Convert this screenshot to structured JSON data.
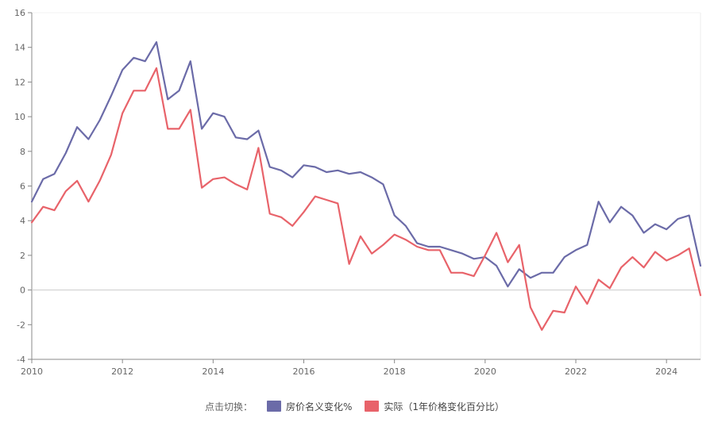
{
  "legend": {
    "title": "点击切换：",
    "items": [
      {
        "label": "房价名义变化%",
        "color": "#6b6ba8"
      },
      {
        "label": "实际（1年价格变化百分比）",
        "color": "#e8636a"
      }
    ]
  },
  "chart_data": {
    "type": "line",
    "title": "",
    "xlabel": "",
    "ylabel": "",
    "xlim": [
      2010,
      2024.75
    ],
    "ylim": [
      -4,
      16
    ],
    "x_ticks": [
      "2010",
      "2012",
      "2014",
      "2016",
      "2018",
      "2020",
      "2022",
      "2024"
    ],
    "y_ticks": [
      "-4",
      "-2",
      "0",
      "2",
      "4",
      "6",
      "8",
      "10",
      "12",
      "14",
      "16"
    ],
    "grid": false,
    "legend_position": "bottom-center",
    "x": [
      2010.0,
      2010.25,
      2010.5,
      2010.75,
      2011.0,
      2011.25,
      2011.5,
      2011.75,
      2012.0,
      2012.25,
      2012.5,
      2012.75,
      2013.0,
      2013.25,
      2013.5,
      2013.75,
      2014.0,
      2014.25,
      2014.5,
      2014.75,
      2015.0,
      2015.25,
      2015.5,
      2015.75,
      2016.0,
      2016.25,
      2016.5,
      2016.75,
      2017.0,
      2017.25,
      2017.5,
      2017.75,
      2018.0,
      2018.25,
      2018.5,
      2018.75,
      2019.0,
      2019.25,
      2019.5,
      2019.75,
      2020.0,
      2020.25,
      2020.5,
      2020.75,
      2021.0,
      2021.25,
      2021.5,
      2021.75,
      2022.0,
      2022.25,
      2022.5,
      2022.75,
      2023.0,
      2023.25,
      2023.5,
      2023.75,
      2024.0,
      2024.25,
      2024.5,
      2024.75
    ],
    "series": [
      {
        "name": "房价名义变化%",
        "color": "#6b6ba8",
        "values": [
          5.1,
          6.4,
          6.7,
          7.9,
          9.4,
          8.7,
          9.8,
          11.2,
          12.7,
          13.4,
          13.2,
          14.3,
          11.0,
          11.5,
          13.2,
          9.3,
          10.2,
          10.0,
          8.8,
          8.7,
          9.2,
          7.1,
          6.9,
          6.5,
          7.2,
          7.1,
          6.8,
          6.9,
          6.7,
          6.8,
          6.5,
          6.1,
          4.3,
          3.7,
          2.7,
          2.5,
          2.5,
          2.3,
          2.1,
          1.8,
          1.9,
          1.4,
          0.2,
          1.2,
          0.7,
          1.0,
          1.0,
          1.9,
          2.3,
          2.6,
          5.1,
          3.9,
          4.8,
          4.3,
          3.3,
          3.8,
          3.5,
          4.1,
          4.3,
          1.4
        ]
      },
      {
        "name": "实际（1年价格变化百分比）",
        "color": "#e8636a",
        "values": [
          3.9,
          4.8,
          4.6,
          5.7,
          6.3,
          5.1,
          6.3,
          7.8,
          10.2,
          11.5,
          11.5,
          12.8,
          9.3,
          9.3,
          10.4,
          5.9,
          6.4,
          6.5,
          6.1,
          5.8,
          8.2,
          4.4,
          4.2,
          3.7,
          4.5,
          5.4,
          5.2,
          5.0,
          1.5,
          3.1,
          2.1,
          2.6,
          3.2,
          2.9,
          2.5,
          2.3,
          2.3,
          1.0,
          1.0,
          0.8,
          2.0,
          3.3,
          1.6,
          2.6,
          -1.0,
          -2.3,
          -1.2,
          -1.3,
          0.2,
          -0.8,
          0.6,
          0.1,
          1.3,
          1.9,
          1.3,
          2.2,
          1.7,
          2.0,
          2.4,
          -0.3
        ]
      }
    ]
  }
}
